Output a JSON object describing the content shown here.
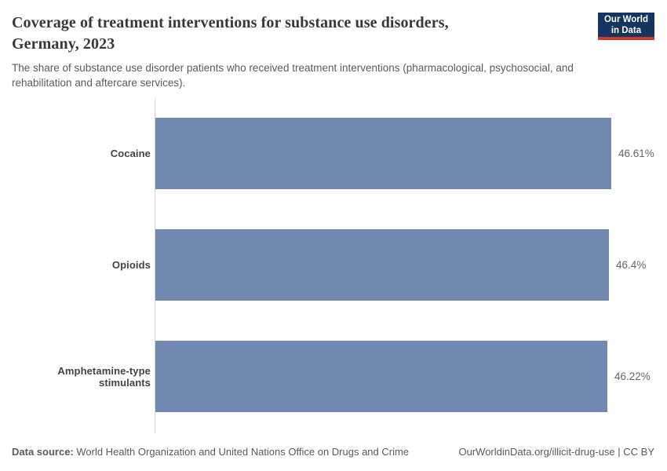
{
  "header": {
    "title_line1": "Coverage of treatment interventions for substance use disorders,",
    "title_line2": "Germany, 2023",
    "subtitle": "The share of substance use disorder patients who received treatment interventions (pharmacological, psychosocial, and rehabilitation and aftercare services).",
    "logo": {
      "line1": "Our World",
      "line2": "in Data"
    }
  },
  "chart_data": {
    "type": "bar",
    "orientation": "horizontal",
    "title": "Coverage of treatment interventions for substance use disorders, Germany, 2023",
    "categories": [
      "Cocaine",
      "Opioids",
      "Amphetamine-type stimulants"
    ],
    "values": [
      46.61,
      46.4,
      46.22
    ],
    "value_labels": [
      "46.61%",
      "46.4%",
      "46.22%"
    ],
    "unit": "%",
    "xlim": [
      0,
      46.61
    ],
    "grid": false,
    "legend": "none",
    "bar_color": "#7189b0"
  },
  "colors": {
    "bar": "#7189b0",
    "axis_line": "#d9d9d9",
    "logo_background": "#14355f",
    "logo_accent": "#d7352c"
  },
  "footer": {
    "source_label": "Data source:",
    "source_text": " World Health Organization and United Nations Office on Drugs and Crime",
    "link_text": "OurWorldinData.org/illicit-drug-use | CC BY"
  }
}
